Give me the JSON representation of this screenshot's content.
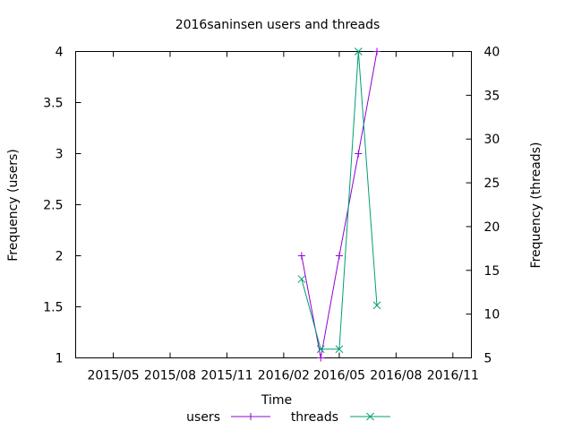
{
  "chart_data": {
    "type": "line",
    "title": "2016saninsen users and threads",
    "xlabel": "Time",
    "ylabel_left": "Frequency (users)",
    "ylabel_right": "Frequency (threads)",
    "x_ticks": [
      "2015/05",
      "2015/08",
      "2015/11",
      "2016/02",
      "2016/05",
      "2016/08",
      "2016/11"
    ],
    "x_tick_dates": [
      "2015-05-01",
      "2015-08-01",
      "2015-11-01",
      "2016-02-01",
      "2016-05-01",
      "2016-08-01",
      "2016-11-01"
    ],
    "xlim": [
      "2015-03-01",
      "2016-12-01"
    ],
    "ylim_left": [
      1,
      4
    ],
    "yticks_left": [
      "1",
      "1.5",
      "2",
      "2.5",
      "3",
      "3.5",
      "4"
    ],
    "ylim_right": [
      5,
      40
    ],
    "yticks_right": [
      "5",
      "10",
      "15",
      "20",
      "25",
      "30",
      "35",
      "40"
    ],
    "legend_position": "bottom",
    "grid": false,
    "series": [
      {
        "name": "users",
        "axis": "left",
        "color": "#9400d3",
        "marker": "plus",
        "x": [
          "2016-03-01",
          "2016-04-01",
          "2016-05-01",
          "2016-06-01",
          "2016-07-01"
        ],
        "values": [
          2,
          1,
          2,
          3,
          4
        ]
      },
      {
        "name": "threads",
        "axis": "right",
        "color": "#009e73",
        "marker": "cross",
        "x": [
          "2016-03-01",
          "2016-04-01",
          "2016-05-01",
          "2016-06-01",
          "2016-07-01"
        ],
        "values": [
          14,
          6,
          6,
          40,
          11
        ]
      }
    ]
  }
}
